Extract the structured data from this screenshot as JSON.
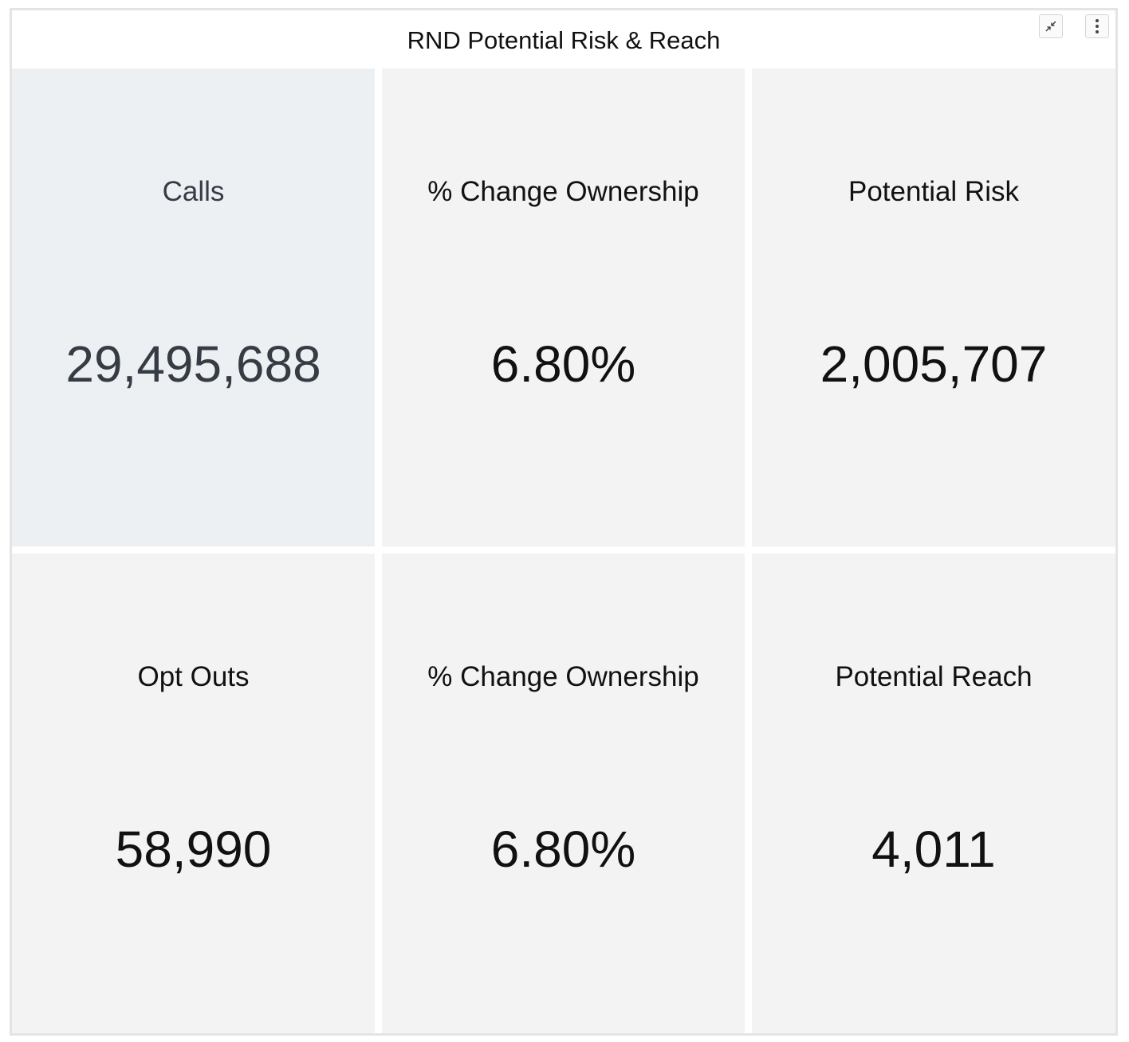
{
  "widget": {
    "title": "RND Potential Risk & Reach",
    "actions": [
      {
        "name": "minimize",
        "icon": "minimize-icon"
      },
      {
        "name": "more",
        "icon": "more-vertical-icon"
      }
    ]
  },
  "tiles": [
    {
      "label": "Calls",
      "value": "29,495,688",
      "selected": true
    },
    {
      "label": "% Change Ownership",
      "value": "6.80%",
      "selected": false
    },
    {
      "label": "Potential Risk",
      "value": "2,005,707",
      "selected": false
    },
    {
      "label": "Opt Outs",
      "value": "58,990",
      "selected": false
    },
    {
      "label": "% Change Ownership",
      "value": "6.80%",
      "selected": false
    },
    {
      "label": "Potential Reach",
      "value": "4,011",
      "selected": false
    }
  ],
  "colors": {
    "tile_background": "#f3f3f3",
    "tile_selected_background": "#ecf0f3",
    "selected_text": "#363c44",
    "border": "#e4e4e4"
  }
}
